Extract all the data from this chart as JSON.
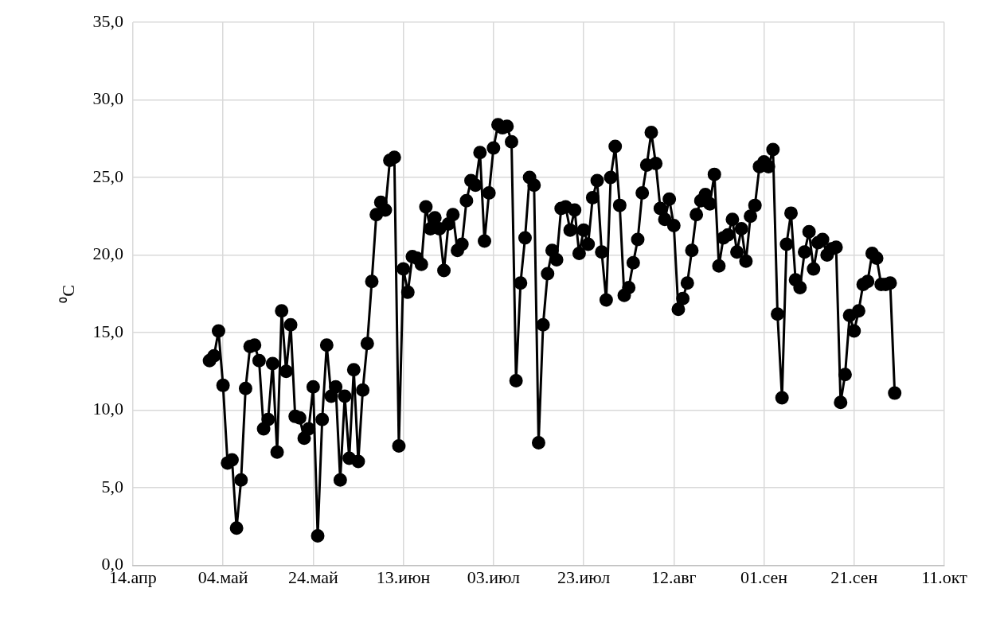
{
  "chart_data": {
    "type": "line",
    "ylabel": "⁰C",
    "x": [
      "--05-01",
      "--05-02",
      "--05-03",
      "--05-04",
      "--05-05",
      "--05-06",
      "--05-07",
      "--05-08",
      "--05-09",
      "--05-10",
      "--05-11",
      "--05-12",
      "--05-13",
      "--05-14",
      "--05-15",
      "--05-16",
      "--05-17",
      "--05-18",
      "--05-19",
      "--05-20",
      "--05-21",
      "--05-22",
      "--05-23",
      "--05-24",
      "--05-25",
      "--05-26",
      "--05-27",
      "--05-28",
      "--05-29",
      "--05-30",
      "--05-31",
      "--06-01",
      "--06-02",
      "--06-03",
      "--06-04",
      "--06-05",
      "--06-06",
      "--06-07",
      "--06-08",
      "--06-09",
      "--06-10",
      "--06-11",
      "--06-12",
      "--06-13",
      "--06-14",
      "--06-15",
      "--06-16",
      "--06-17",
      "--06-18",
      "--06-19",
      "--06-20",
      "--06-21",
      "--06-22",
      "--06-23",
      "--06-24",
      "--06-25",
      "--06-26",
      "--06-27",
      "--06-28",
      "--06-29",
      "--06-30",
      "--07-01",
      "--07-02",
      "--07-03",
      "--07-04",
      "--07-05",
      "--07-06",
      "--07-07",
      "--07-08",
      "--07-09",
      "--07-10",
      "--07-11",
      "--07-12",
      "--07-13",
      "--07-14",
      "--07-15",
      "--07-16",
      "--07-17",
      "--07-18",
      "--07-19",
      "--07-20",
      "--07-21",
      "--07-22",
      "--07-23",
      "--07-24",
      "--07-25",
      "--07-26",
      "--07-27",
      "--07-28",
      "--07-29",
      "--07-30",
      "--07-31",
      "--08-01",
      "--08-02",
      "--08-03",
      "--08-04",
      "--08-05",
      "--08-06",
      "--08-07",
      "--08-08",
      "--08-09",
      "--08-10",
      "--08-11",
      "--08-12",
      "--08-13",
      "--08-14",
      "--08-15",
      "--08-16",
      "--08-17",
      "--08-18",
      "--08-19",
      "--08-20",
      "--08-21",
      "--08-22",
      "--08-23",
      "--08-24",
      "--08-25",
      "--08-26",
      "--08-27",
      "--08-28",
      "--08-29",
      "--08-30",
      "--08-31",
      "--09-01",
      "--09-02",
      "--09-03",
      "--09-04",
      "--09-05",
      "--09-06",
      "--09-07",
      "--09-08",
      "--09-09",
      "--09-10",
      "--09-11",
      "--09-12",
      "--09-13",
      "--09-14",
      "--09-15",
      "--09-16",
      "--09-17",
      "--09-18",
      "--09-19",
      "--09-20",
      "--09-21",
      "--09-22",
      "--09-23",
      "--09-24",
      "--09-25",
      "--09-26",
      "--09-27",
      "--09-28",
      "--09-29",
      "--09-30"
    ],
    "series": [
      {
        "color": "#000000",
        "values": [
          13.2,
          13.5,
          15.1,
          11.6,
          6.6,
          6.8,
          2.4,
          5.5,
          11.4,
          14.1,
          14.2,
          13.2,
          8.8,
          9.4,
          13.0,
          7.3,
          16.4,
          12.5,
          15.5,
          9.6,
          9.5,
          8.2,
          8.8,
          11.5,
          1.9,
          9.4,
          14.2,
          10.9,
          11.5,
          5.5,
          10.9,
          6.9,
          12.6,
          6.7,
          11.3,
          14.3,
          18.3,
          22.6,
          23.4,
          22.9,
          26.1,
          26.3,
          7.7,
          19.1,
          17.6,
          19.9,
          19.8,
          19.4,
          23.1,
          21.7,
          22.4,
          21.7,
          19.0,
          22.0,
          22.6,
          20.3,
          20.7,
          23.5,
          24.8,
          24.5,
          26.6,
          20.9,
          24.0,
          26.9,
          28.4,
          28.2,
          28.3,
          27.3,
          11.9,
          18.2,
          21.1,
          25.0,
          24.5,
          7.9,
          15.5,
          18.8,
          20.3,
          19.7,
          23.0,
          23.1,
          21.6,
          22.9,
          20.1,
          21.6,
          20.7,
          23.7,
          24.8,
          20.2,
          17.1,
          25.0,
          27.0,
          23.2,
          17.4,
          17.9,
          19.5,
          21.0,
          24.0,
          25.8,
          27.9,
          25.9,
          23.0,
          22.3,
          23.6,
          21.9,
          16.5,
          17.2,
          18.2,
          20.3,
          22.6,
          23.5,
          23.9,
          23.3,
          25.2,
          19.3,
          21.1,
          21.3,
          22.3,
          20.2,
          21.7,
          19.6,
          22.5,
          23.2,
          25.7,
          26.0,
          25.7,
          26.8,
          16.2,
          10.8,
          20.7,
          22.7,
          18.4,
          17.9,
          20.2,
          21.5,
          19.1,
          20.8,
          21.0,
          20.0,
          20.4,
          20.5,
          10.5,
          12.3,
          16.1,
          15.1,
          16.4,
          18.1,
          18.3,
          20.1,
          19.8,
          18.1,
          18.1,
          18.2,
          11.1
        ]
      }
    ],
    "xlim": [
      "--04-14",
      "--10-11"
    ],
    "xticks": [
      {
        "value": "--04-14",
        "label": "14.апр"
      },
      {
        "value": "--05-04",
        "label": "04.май"
      },
      {
        "value": "--05-24",
        "label": "24.май"
      },
      {
        "value": "--06-13",
        "label": "13.июн"
      },
      {
        "value": "--07-03",
        "label": "03.июл"
      },
      {
        "value": "--07-23",
        "label": "23.июл"
      },
      {
        "value": "--08-12",
        "label": "12.авг"
      },
      {
        "value": "--09-01",
        "label": "01.сен"
      },
      {
        "value": "--09-21",
        "label": "21.сен"
      },
      {
        "value": "--10-11",
        "label": "11.окт"
      }
    ],
    "ylim": [
      0,
      35
    ],
    "yticks": [
      {
        "value": 0,
        "label": "0,0"
      },
      {
        "value": 5,
        "label": "5,0"
      },
      {
        "value": 10,
        "label": "10,0"
      },
      {
        "value": 15,
        "label": "15,0"
      },
      {
        "value": 20,
        "label": "20,0"
      },
      {
        "value": 25,
        "label": "25,0"
      },
      {
        "value": 30,
        "label": "30,0"
      },
      {
        "value": 35,
        "label": "35,0"
      }
    ],
    "grid": true,
    "legend": false,
    "marker": "circle",
    "line_style": "solid"
  }
}
